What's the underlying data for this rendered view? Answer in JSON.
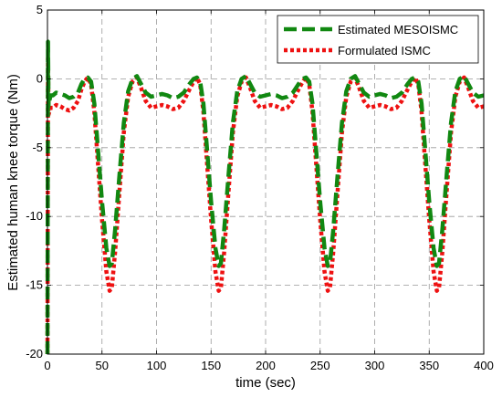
{
  "chart_data": {
    "type": "line",
    "xlabel": "time (sec)",
    "ylabel": "Estimated human knee torque (Nm)",
    "xlim": [
      0,
      400
    ],
    "ylim": [
      -20,
      5
    ],
    "xticks": [
      "0",
      "50",
      "100",
      "150",
      "200",
      "250",
      "300",
      "350",
      "400"
    ],
    "yticks": [
      "5",
      "0",
      "-5",
      "-10",
      "-15",
      "-20"
    ],
    "grid": true,
    "legend_position": "top-right",
    "series": [
      {
        "name": "Estimated MESOISMC",
        "color": "#118811",
        "style": "dashed",
        "x": [
          0,
          0.5,
          1,
          2,
          3,
          5,
          8,
          12,
          16,
          20,
          24,
          28,
          31,
          34,
          37,
          40,
          43,
          46,
          50,
          54,
          57,
          59,
          62,
          66,
          70,
          74,
          78,
          82,
          86,
          90,
          95,
          100,
          105,
          110,
          115,
          120,
          125,
          130,
          134,
          137,
          140,
          143,
          146,
          150,
          154,
          157,
          159,
          162,
          166,
          170,
          174,
          178,
          182,
          186,
          190,
          195,
          200,
          205,
          210,
          215,
          220,
          225,
          230,
          234,
          237,
          240,
          243,
          246,
          250,
          254,
          257,
          259,
          262,
          266,
          270,
          274,
          278,
          282,
          286,
          290,
          295,
          300,
          305,
          310,
          315,
          320,
          325,
          330,
          334,
          337,
          340,
          343,
          346,
          350,
          354,
          357,
          359,
          362,
          366,
          370,
          374,
          378,
          382,
          386,
          390,
          395,
          400
        ],
        "y": [
          -20,
          2.7,
          -2.0,
          -1.5,
          -1.2,
          -1.2,
          -1.0,
          -1.1,
          -1.2,
          -1.4,
          -1.3,
          -1.0,
          -0.4,
          0.0,
          0.1,
          -0.2,
          -1.8,
          -4.8,
          -8.9,
          -12.3,
          -13.6,
          -13.4,
          -11.0,
          -7.0,
          -3.2,
          -0.9,
          0.0,
          0.2,
          -0.4,
          -1.0,
          -1.3,
          -1.2,
          -1.1,
          -1.2,
          -1.4,
          -1.3,
          -1.0,
          -0.4,
          0.0,
          0.1,
          -0.2,
          -1.8,
          -4.8,
          -8.9,
          -12.3,
          -13.6,
          -13.4,
          -11.0,
          -7.0,
          -3.2,
          -0.9,
          0.0,
          0.2,
          -0.4,
          -1.0,
          -1.3,
          -1.2,
          -1.1,
          -1.2,
          -1.4,
          -1.3,
          -1.0,
          -0.4,
          0.0,
          0.1,
          -0.2,
          -1.8,
          -4.8,
          -8.9,
          -12.3,
          -13.6,
          -13.4,
          -11.0,
          -7.0,
          -3.2,
          -0.9,
          0.0,
          0.2,
          -0.4,
          -1.0,
          -1.3,
          -1.2,
          -1.1,
          -1.2,
          -1.4,
          -1.3,
          -1.0,
          -0.4,
          0.0,
          0.1,
          -0.2,
          -1.8,
          -4.8,
          -8.9,
          -12.3,
          -13.6,
          -13.4,
          -11.0,
          -7.0,
          -3.2,
          -0.9,
          0.0,
          0.2,
          -0.4,
          -1.0,
          -1.3,
          -1.2
        ]
      },
      {
        "name": "Formulated ISMC",
        "color": "#ee1111",
        "style": "dotted",
        "x": [
          0,
          0.5,
          1,
          2,
          3,
          5,
          8,
          12,
          16,
          20,
          24,
          28,
          31,
          34,
          37,
          40,
          43,
          46,
          50,
          54,
          57,
          59,
          62,
          66,
          70,
          74,
          78,
          82,
          86,
          90,
          95,
          100,
          105,
          110,
          115,
          120,
          125,
          130,
          134,
          137,
          140,
          143,
          146,
          150,
          154,
          157,
          159,
          162,
          166,
          170,
          174,
          178,
          182,
          186,
          190,
          195,
          200,
          205,
          210,
          215,
          220,
          225,
          230,
          234,
          237,
          240,
          243,
          246,
          250,
          254,
          257,
          259,
          262,
          266,
          270,
          274,
          278,
          282,
          286,
          290,
          295,
          300,
          305,
          310,
          315,
          320,
          325,
          330,
          334,
          337,
          340,
          343,
          346,
          350,
          354,
          357,
          359,
          362,
          366,
          370,
          374,
          378,
          382,
          386,
          390,
          395,
          400
        ],
        "y": [
          -20,
          1.5,
          -2.6,
          -2.3,
          -2.1,
          -2.1,
          -1.9,
          -2.0,
          -2.2,
          -2.3,
          -2.1,
          -1.6,
          -0.8,
          -0.2,
          0.1,
          -0.4,
          -2.4,
          -5.8,
          -10.2,
          -14.0,
          -15.4,
          -15.2,
          -12.6,
          -8.2,
          -3.9,
          -1.3,
          -0.2,
          0.1,
          -0.7,
          -1.6,
          -2.1,
          -2.0,
          -1.9,
          -2.0,
          -2.2,
          -2.1,
          -1.6,
          -0.8,
          -0.2,
          0.1,
          -0.4,
          -2.4,
          -5.8,
          -10.2,
          -14.0,
          -15.4,
          -15.2,
          -12.6,
          -8.2,
          -3.9,
          -1.3,
          -0.2,
          0.1,
          -0.7,
          -1.6,
          -2.1,
          -2.0,
          -1.9,
          -2.0,
          -2.2,
          -2.1,
          -1.6,
          -0.8,
          -0.2,
          0.1,
          -0.4,
          -2.4,
          -5.8,
          -10.2,
          -14.0,
          -15.4,
          -15.2,
          -12.6,
          -8.2,
          -3.9,
          -1.3,
          -0.2,
          0.1,
          -0.7,
          -1.6,
          -2.1,
          -2.0,
          -1.9,
          -2.0,
          -2.2,
          -2.1,
          -1.6,
          -0.8,
          -0.2,
          0.1,
          -0.4,
          -2.4,
          -5.8,
          -10.2,
          -14.0,
          -15.4,
          -15.2,
          -12.6,
          -8.2,
          -3.9,
          -1.3,
          -0.2,
          0.1,
          -0.7,
          -1.6,
          -2.1,
          -2.0
        ]
      }
    ]
  }
}
